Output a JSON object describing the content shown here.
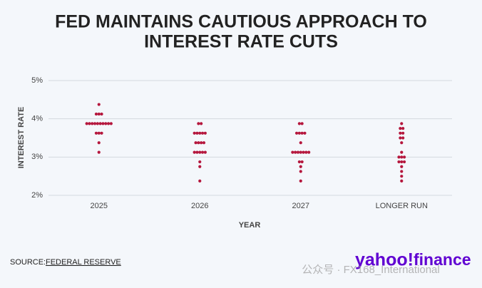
{
  "chart_data": {
    "type": "dot",
    "title": [
      "FED MAINTAINS CAUTIOUS APPROACH TO",
      "INTEREST RATE CUTS"
    ],
    "x_label": "YEAR",
    "y_label": "INTEREST RATE",
    "categories": [
      "2025",
      "2026",
      "2027",
      "LONGER RUN"
    ],
    "values": [
      [
        4.375,
        4.125,
        4.125,
        4.125,
        3.875,
        3.875,
        3.875,
        3.875,
        3.875,
        3.875,
        3.875,
        3.875,
        3.875,
        3.875,
        3.625,
        3.625,
        3.625,
        3.375,
        3.125
      ],
      [
        3.875,
        3.875,
        3.625,
        3.625,
        3.625,
        3.625,
        3.625,
        3.375,
        3.375,
        3.375,
        3.375,
        3.125,
        3.125,
        3.125,
        3.125,
        3.125,
        2.875,
        2.75,
        2.375
      ],
      [
        3.875,
        3.875,
        3.625,
        3.625,
        3.625,
        3.625,
        3.375,
        3.125,
        3.125,
        3.125,
        3.125,
        3.125,
        3.125,
        3.125,
        2.875,
        2.875,
        2.75,
        2.625,
        2.375
      ],
      [
        3.875,
        3.75,
        3.75,
        3.625,
        3.625,
        3.5,
        3.5,
        3.375,
        3.125,
        3.0,
        3.0,
        3.0,
        2.875,
        2.875,
        2.875,
        2.75,
        2.625,
        2.5,
        2.375
      ]
    ],
    "color": "#b5173d",
    "ylim": [
      2,
      5
    ],
    "yticks": [
      {
        "value": 2,
        "label": "2%"
      },
      {
        "value": 3,
        "label": "3%"
      },
      {
        "value": 4,
        "label": "4%"
      },
      {
        "value": 5,
        "label": "5%"
      }
    ],
    "grid": true,
    "source_prefix": "SOURCE:",
    "source": "FEDERAL RESERVE",
    "brand": [
      "yahoo!",
      "finance"
    ],
    "watermark": "公众号 · FX168_International"
  }
}
